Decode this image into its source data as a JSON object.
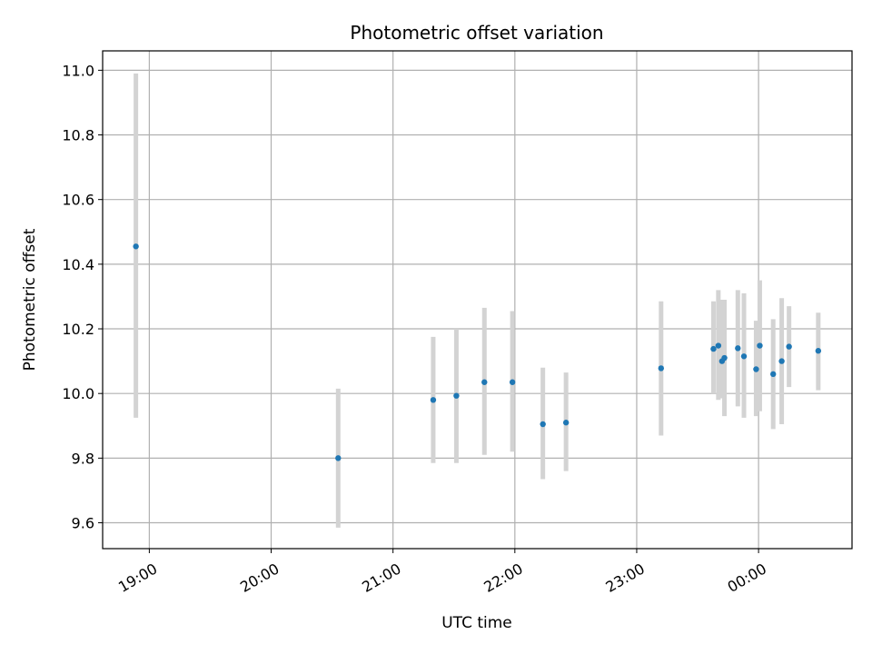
{
  "chart_data": {
    "type": "scatter",
    "title": "Photometric offset variation",
    "xlabel": "UTC time",
    "ylabel": "Photometric offset",
    "x_unit": "hours UTC (24+ = after midnight)",
    "xlim": [
      18.617,
      24.767
    ],
    "ylim": [
      9.52,
      11.06
    ],
    "grid": true,
    "x_ticks": [
      {
        "value": 19,
        "label": "19:00"
      },
      {
        "value": 20,
        "label": "20:00"
      },
      {
        "value": 21,
        "label": "21:00"
      },
      {
        "value": 22,
        "label": "22:00"
      },
      {
        "value": 23,
        "label": "23:00"
      },
      {
        "value": 24,
        "label": "00:00"
      }
    ],
    "y_ticks": [
      {
        "value": 9.6,
        "label": "9.6"
      },
      {
        "value": 9.8,
        "label": "9.8"
      },
      {
        "value": 10.0,
        "label": "10.0"
      },
      {
        "value": 10.2,
        "label": "10.2"
      },
      {
        "value": 10.4,
        "label": "10.4"
      },
      {
        "value": 10.6,
        "label": "10.6"
      },
      {
        "value": 10.8,
        "label": "10.8"
      },
      {
        "value": 11.0,
        "label": "11.0"
      }
    ],
    "point_color": "#1f77b4",
    "errorbar_color": "#d3d3d3",
    "points": [
      {
        "x": 18.89,
        "y": 10.455,
        "low": 9.925,
        "high": 10.99
      },
      {
        "x": 20.55,
        "y": 9.8,
        "low": 9.585,
        "high": 10.015
      },
      {
        "x": 21.33,
        "y": 9.98,
        "low": 9.785,
        "high": 10.175
      },
      {
        "x": 21.52,
        "y": 9.993,
        "low": 9.785,
        "high": 10.2
      },
      {
        "x": 21.75,
        "y": 10.035,
        "low": 9.81,
        "high": 10.265
      },
      {
        "x": 21.98,
        "y": 10.035,
        "low": 9.82,
        "high": 10.255
      },
      {
        "x": 22.23,
        "y": 9.905,
        "low": 9.735,
        "high": 10.08
      },
      {
        "x": 22.42,
        "y": 9.91,
        "low": 9.76,
        "high": 10.065
      },
      {
        "x": 23.2,
        "y": 10.078,
        "low": 9.87,
        "high": 10.285
      },
      {
        "x": 23.63,
        "y": 10.138,
        "low": 10.0,
        "high": 10.285
      },
      {
        "x": 23.67,
        "y": 10.148,
        "low": 9.98,
        "high": 10.32
      },
      {
        "x": 23.7,
        "y": 10.1,
        "low": 9.985,
        "high": 10.29
      },
      {
        "x": 23.72,
        "y": 10.11,
        "low": 9.93,
        "high": 10.29
      },
      {
        "x": 23.83,
        "y": 10.14,
        "low": 9.96,
        "high": 10.32
      },
      {
        "x": 23.88,
        "y": 10.115,
        "low": 9.925,
        "high": 10.31
      },
      {
        "x": 23.98,
        "y": 10.075,
        "low": 9.93,
        "high": 10.225
      },
      {
        "x": 24.01,
        "y": 10.148,
        "low": 9.945,
        "high": 10.35
      },
      {
        "x": 24.12,
        "y": 10.06,
        "low": 9.89,
        "high": 10.23
      },
      {
        "x": 24.19,
        "y": 10.1,
        "low": 9.905,
        "high": 10.295
      },
      {
        "x": 24.25,
        "y": 10.145,
        "low": 10.02,
        "high": 10.27
      },
      {
        "x": 24.49,
        "y": 10.132,
        "low": 10.01,
        "high": 10.25
      }
    ]
  }
}
